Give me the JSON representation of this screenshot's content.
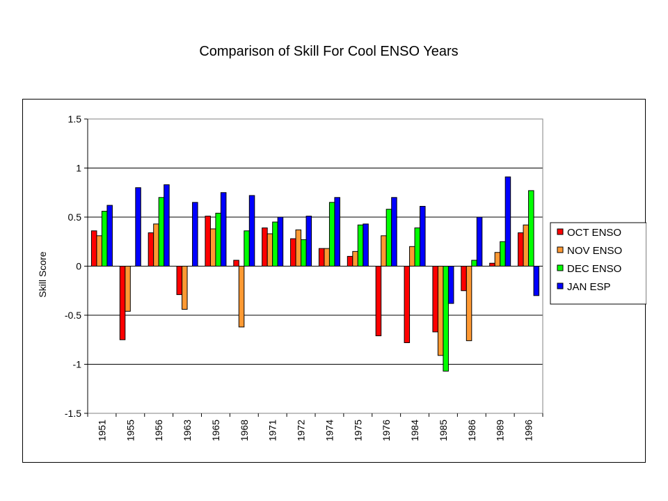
{
  "title": "Comparison of Skill For Cool ENSO Years",
  "chart_data": {
    "type": "bar",
    "title": "Comparison of Skill For Cool ENSO Years",
    "xlabel": "",
    "ylabel": "Skill Score",
    "ylim": [
      -1.5,
      1.5
    ],
    "yticks": [
      1.5,
      1,
      0.5,
      0,
      -0.5,
      -1,
      -1.5
    ],
    "ytick_labels": [
      "1.5",
      "1",
      "0.5",
      "0",
      "-0.5",
      "-1",
      "-1.5"
    ],
    "grid": true,
    "legend_position": "right",
    "categories": [
      "1951",
      "1955",
      "1956",
      "1963",
      "1965",
      "1968",
      "1971",
      "1972",
      "1974",
      "1975",
      "1976",
      "1984",
      "1985",
      "1986",
      "1989",
      "1996"
    ],
    "series": [
      {
        "name": "OCT ENSO",
        "color": "#ff0000",
        "values": [
          0.36,
          -0.75,
          0.34,
          -0.29,
          0.51,
          0.06,
          0.39,
          0.28,
          0.18,
          0.1,
          -0.71,
          -0.78,
          -0.67,
          -0.25,
          0.03,
          0.34
        ]
      },
      {
        "name": "NOV ENSO",
        "color": "#ff9933",
        "values": [
          0.31,
          -0.46,
          0.43,
          -0.44,
          0.38,
          -0.62,
          0.33,
          0.37,
          0.18,
          0.15,
          0.31,
          0.2,
          -0.91,
          -0.76,
          0.14,
          0.42
        ]
      },
      {
        "name": "DEC ENSO",
        "color": "#00ff00",
        "values": [
          0.56,
          0.0,
          0.7,
          0.0,
          0.54,
          0.36,
          0.45,
          0.27,
          0.65,
          0.42,
          0.58,
          0.39,
          -1.07,
          0.06,
          0.25,
          0.77
        ]
      },
      {
        "name": "JAN ESP",
        "color": "#0000ff",
        "values": [
          0.62,
          0.8,
          0.83,
          0.65,
          0.75,
          0.72,
          0.5,
          0.51,
          0.7,
          0.43,
          0.7,
          0.61,
          -0.38,
          0.5,
          0.91,
          -0.3
        ]
      }
    ]
  }
}
